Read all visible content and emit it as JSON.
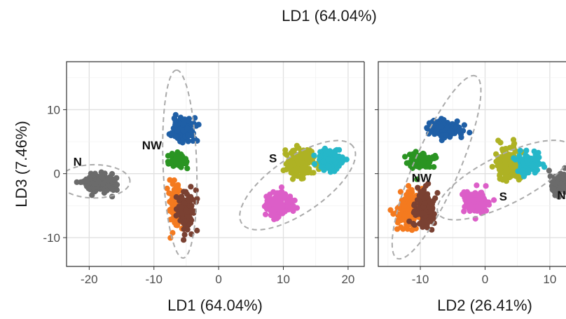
{
  "figure_title": "LD1 (64.04%)",
  "colors": {
    "N": "#6b6b6b",
    "NW_blue": "#1f5fa6",
    "NW_green": "#2a9422",
    "NW_orange": "#f47a1f",
    "NW_brown": "#7a4132",
    "S_olive": "#aeb224",
    "S_cyan": "#25b7c9",
    "S_pink": "#dc5ec8",
    "ellipse": "#aaaaaa",
    "grid": "#e6e6e6",
    "frame": "#333333"
  },
  "chart_data": [
    {
      "type": "scatter",
      "title": "",
      "xlabel": "LD1 (64.04%)",
      "ylabel": "LD3 (7.46%)",
      "xlim": [
        -23.5,
        22.5
      ],
      "ylim": [
        -14.5,
        17.5
      ],
      "xticks": [
        -20,
        -10,
        0,
        10,
        20
      ],
      "yticks": [
        -10,
        0,
        10
      ],
      "grid": true,
      "cluster_labels": [
        {
          "text": "N",
          "x": -21.8,
          "y": 1.2
        },
        {
          "text": "NW",
          "x": -10.3,
          "y": 3.8
        },
        {
          "text": "S",
          "x": 8.4,
          "y": 1.8
        }
      ],
      "ellipses": [
        {
          "cx": -19.2,
          "cy": -1.2,
          "rx": 5.5,
          "ry": 2.6,
          "angle": 0
        },
        {
          "cx": -6.0,
          "cy": 1.5,
          "rx": 14.7,
          "ry": 2.6,
          "angle": 92
        },
        {
          "cx": 12.2,
          "cy": -1.8,
          "rx": 10.5,
          "ry": 4.3,
          "angle": 35
        }
      ],
      "series": [
        {
          "color_key": "N",
          "cx": -18.2,
          "cy": -1.5,
          "sx": 1.2,
          "sy": 0.7,
          "n": 160
        },
        {
          "color_key": "NW_blue",
          "cx": -5.5,
          "cy": 7.0,
          "sx": 0.8,
          "sy": 0.9,
          "n": 130
        },
        {
          "color_key": "NW_green",
          "cx": -6.5,
          "cy": 2.0,
          "sx": 0.7,
          "sy": 0.6,
          "n": 80
        },
        {
          "color_key": "NW_orange",
          "cx": -6.5,
          "cy": -5.5,
          "sx": 0.5,
          "sy": 1.6,
          "n": 110
        },
        {
          "color_key": "NW_brown",
          "cx": -5.0,
          "cy": -6.0,
          "sx": 0.6,
          "sy": 1.6,
          "n": 110
        },
        {
          "color_key": "S_olive",
          "cx": 12.8,
          "cy": 1.5,
          "sx": 1.1,
          "sy": 1.1,
          "n": 150
        },
        {
          "color_key": "S_cyan",
          "cx": 17.3,
          "cy": 2.2,
          "sx": 1.0,
          "sy": 0.8,
          "n": 100
        },
        {
          "color_key": "S_pink",
          "cx": 9.3,
          "cy": -4.8,
          "sx": 1.0,
          "sy": 1.0,
          "n": 130
        }
      ]
    },
    {
      "type": "scatter",
      "title": "",
      "xlabel": "LD2 (26.41%)",
      "ylabel": "",
      "xlim": [
        -16.5,
        12.5
      ],
      "ylim": [
        -14.5,
        17.5
      ],
      "xticks": [
        -10,
        0,
        10
      ],
      "yticks": [
        -10,
        0,
        10
      ],
      "grid": true,
      "cluster_labels": [
        {
          "text": "NW",
          "x": -9.8,
          "y": -1.3
        },
        {
          "text": "S",
          "x": 2.8,
          "y": -4.2
        },
        {
          "text": "N",
          "x": 11.8,
          "y": -4.0
        }
      ],
      "ellipses": [
        {
          "cx": -7.5,
          "cy": 1.0,
          "rx": 15.5,
          "ry": 3.5,
          "angle": 67
        },
        {
          "cx": 3.0,
          "cy": -1.0,
          "rx": 11.5,
          "ry": 3.8,
          "angle": 27
        }
      ],
      "series": [
        {
          "color_key": "NW_blue",
          "cx": -6.2,
          "cy": 7.0,
          "sx": 1.3,
          "sy": 0.7,
          "n": 130
        },
        {
          "color_key": "NW_green",
          "cx": -10.0,
          "cy": 2.0,
          "sx": 0.9,
          "sy": 0.6,
          "n": 80
        },
        {
          "color_key": "NW_orange",
          "cx": -11.7,
          "cy": -5.6,
          "sx": 1.0,
          "sy": 1.5,
          "n": 120
        },
        {
          "color_key": "NW_brown",
          "cx": -9.3,
          "cy": -5.6,
          "sx": 0.8,
          "sy": 1.6,
          "n": 110
        },
        {
          "color_key": "S_olive",
          "cx": 3.5,
          "cy": 1.6,
          "sx": 0.9,
          "sy": 1.3,
          "n": 150
        },
        {
          "color_key": "S_cyan",
          "cx": 6.8,
          "cy": 1.6,
          "sx": 0.9,
          "sy": 0.8,
          "n": 100
        },
        {
          "color_key": "S_pink",
          "cx": -1.4,
          "cy": -4.4,
          "sx": 1.1,
          "sy": 1.0,
          "n": 130
        },
        {
          "color_key": "N",
          "cx": 11.5,
          "cy": -1.5,
          "sx": 0.8,
          "sy": 0.8,
          "n": 70
        }
      ]
    }
  ]
}
